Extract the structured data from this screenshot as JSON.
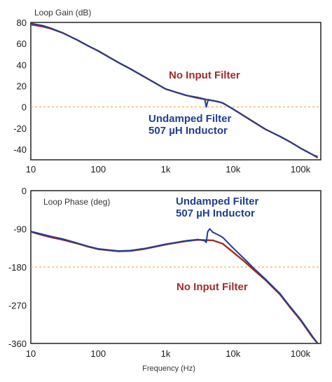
{
  "colors": {
    "no_filter": "#a52a2a",
    "undamped": "#1f3f8f",
    "reference": "#e8a317",
    "frame": "#222222"
  },
  "chart_data": [
    {
      "type": "line",
      "title": "Loop Gain (dB)",
      "xscale": "log",
      "xlim": [
        10,
        200000
      ],
      "ylim": [
        -50,
        80
      ],
      "xticks": [
        10,
        100,
        1000,
        10000,
        100000
      ],
      "xtick_labels": [
        "10",
        "100",
        "1k",
        "10k",
        "100k"
      ],
      "yticks": [
        80,
        60,
        40,
        20,
        0,
        -20,
        -40
      ],
      "ytick_labels": [
        "80",
        "60",
        "40",
        "20",
        "0",
        "-20",
        "-40"
      ],
      "reference_line": 0,
      "grid": false,
      "series": [
        {
          "name": "No Input Filter",
          "x": [
            10,
            15,
            20,
            30,
            50,
            70,
            100,
            200,
            300,
            500,
            1000,
            2000,
            3000,
            4000,
            5000,
            6000,
            7000,
            10000,
            15000,
            20000,
            30000,
            50000,
            70000,
            100000,
            150000,
            180000
          ],
          "y": [
            78,
            76,
            74,
            70,
            63,
            58,
            53,
            42,
            36,
            28,
            17,
            11,
            8.5,
            7,
            6,
            5,
            3.8,
            -2,
            -9,
            -14,
            -21,
            -28,
            -33,
            -39,
            -45,
            -48
          ]
        },
        {
          "name": "Undamped Filter 507 µH Inductor",
          "x": [
            10,
            15,
            20,
            30,
            50,
            70,
            100,
            200,
            300,
            500,
            1000,
            2000,
            3000,
            3800,
            4000,
            4150,
            4300,
            5000,
            6000,
            7000,
            10000,
            15000,
            20000,
            30000,
            50000,
            70000,
            100000,
            150000,
            180000
          ],
          "y": [
            79,
            77,
            74.5,
            70,
            63,
            58,
            53,
            42,
            36,
            28,
            17,
            11,
            9,
            7.5,
            0,
            4,
            7,
            6,
            5,
            3.8,
            -2,
            -9,
            -14,
            -21,
            -28,
            -33,
            -39,
            -45,
            -47
          ]
        }
      ],
      "annotations": [
        {
          "text": "No Input Filter",
          "series": "No Input Filter"
        },
        {
          "text": "Undamped Filter",
          "series": "Undamped Filter 507 µH Inductor"
        },
        {
          "text": "507 µH Inductor",
          "series": "Undamped Filter 507 µH Inductor"
        }
      ]
    },
    {
      "type": "line",
      "title": "Loop Phase (deg)",
      "xlabel": "Frequency (Hz)",
      "xscale": "log",
      "xlim": [
        10,
        200000
      ],
      "ylim": [
        -360,
        0
      ],
      "xticks": [
        10,
        100,
        1000,
        10000,
        100000
      ],
      "xtick_labels": [
        "10",
        "100",
        "1k",
        "10k",
        "100k"
      ],
      "yticks": [
        0,
        -90,
        -180,
        -270,
        -360
      ],
      "ytick_labels": [
        "0",
        "-90",
        "-180",
        "-270",
        "-360"
      ],
      "reference_line": -180,
      "grid": false,
      "series": [
        {
          "name": "No Input Filter",
          "x": [
            10,
            15,
            20,
            30,
            50,
            70,
            100,
            200,
            300,
            500,
            1000,
            2000,
            3000,
            5000,
            7000,
            10000,
            15000,
            20000,
            30000,
            50000,
            70000,
            100000,
            150000,
            180000
          ],
          "y": [
            -97,
            -105,
            -110,
            -116,
            -125,
            -132,
            -138,
            -143,
            -142,
            -137,
            -127,
            -119,
            -116,
            -117,
            -125,
            -145,
            -168,
            -186,
            -210,
            -245,
            -275,
            -305,
            -345,
            -360
          ]
        },
        {
          "name": "Undamped Filter 507 µH Inductor",
          "x": [
            10,
            15,
            20,
            30,
            50,
            70,
            100,
            200,
            300,
            500,
            1000,
            2000,
            3000,
            3800,
            4000,
            4200,
            4500,
            5000,
            6000,
            7000,
            10000,
            15000,
            20000,
            30000,
            50000,
            70000,
            100000,
            150000,
            180000
          ],
          "y": [
            -96,
            -103,
            -108,
            -114,
            -124,
            -131,
            -137,
            -142,
            -141,
            -136,
            -126,
            -118,
            -115,
            -118,
            -122,
            -97,
            -90,
            -98,
            -104,
            -110,
            -135,
            -162,
            -182,
            -208,
            -243,
            -273,
            -303,
            -343,
            -360
          ]
        }
      ],
      "annotations": [
        {
          "text": "Undamped Filter",
          "series": "Undamped Filter 507 µH Inductor"
        },
        {
          "text": "507 µH Inductor",
          "series": "Undamped Filter 507 µH Inductor"
        },
        {
          "text": "No Input Filter",
          "series": "No Input Filter"
        }
      ]
    }
  ]
}
